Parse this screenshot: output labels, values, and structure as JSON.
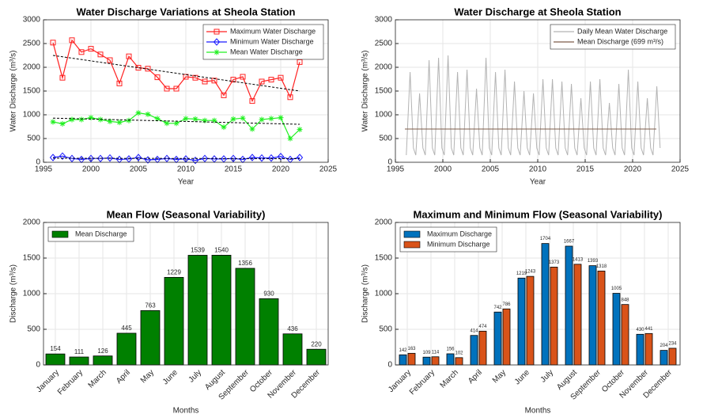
{
  "chart_data": [
    {
      "type": "line",
      "title": "Water Discharge Variations at Sheola Station",
      "xlabel": "Year",
      "ylabel": "Water Discharge (m³/s)",
      "x": [
        1996,
        1997,
        1998,
        1999,
        2000,
        2001,
        2002,
        2003,
        2004,
        2005,
        2006,
        2007,
        2008,
        2009,
        2010,
        2011,
        2012,
        2013,
        2014,
        2015,
        2016,
        2017,
        2018,
        2019,
        2020,
        2021,
        2022
      ],
      "series": [
        {
          "name": "Maximum Water Discharge",
          "color": "#ff2020",
          "marker": "square",
          "values": [
            2520,
            1780,
            2570,
            2320,
            2390,
            2270,
            2150,
            1660,
            2230,
            1990,
            1970,
            1790,
            1550,
            1550,
            1800,
            1780,
            1700,
            1720,
            1410,
            1740,
            1800,
            1290,
            1700,
            1740,
            1780,
            1370,
            2110
          ]
        },
        {
          "name": "Minimum Water Discharge",
          "color": "#1a1aff",
          "marker": "diamond",
          "values": [
            100,
            130,
            80,
            60,
            80,
            80,
            90,
            60,
            70,
            100,
            50,
            60,
            80,
            60,
            70,
            40,
            80,
            70,
            70,
            80,
            60,
            100,
            90,
            90,
            120,
            60,
            100
          ]
        },
        {
          "name": "Mean Water Discharge",
          "color": "#20f020",
          "marker": "star",
          "values": [
            850,
            810,
            900,
            900,
            940,
            900,
            860,
            840,
            880,
            1040,
            1010,
            920,
            820,
            820,
            920,
            910,
            880,
            880,
            740,
            910,
            930,
            700,
            900,
            920,
            940,
            500,
            690
          ]
        }
      ],
      "trend_lines": [
        {
          "x": [
            1996,
            2022
          ],
          "values": [
            2250,
            1500
          ]
        },
        {
          "x": [
            1996,
            2022
          ],
          "values": [
            930,
            800
          ]
        },
        {
          "x": [
            1996,
            2022
          ],
          "values": [
            85,
            75
          ]
        }
      ],
      "xlim": [
        1995,
        2025
      ],
      "xticks": [
        1995,
        2000,
        2005,
        2010,
        2015,
        2020,
        2025
      ],
      "ylim": [
        0,
        3000
      ],
      "yticks": [
        0,
        500,
        1000,
        1500,
        2000,
        2500,
        3000
      ],
      "grid": true,
      "legend": "upper-right"
    },
    {
      "type": "line",
      "title": "Water Discharge at Sheola Station",
      "xlabel": "Year",
      "ylabel": "Water Discharge (m³/s)",
      "series": [
        {
          "name": "Daily Mean Water Discharge",
          "color": "#b3b3b3",
          "x": [
            1996.15,
            1996.55,
            1996.9,
            1997.15,
            1997.55,
            1997.9,
            1998.15,
            1998.55,
            1998.9,
            1999.15,
            1999.55,
            1999.9,
            2000.15,
            2000.55,
            2000.9,
            2001.15,
            2001.55,
            2001.9,
            2002.15,
            2002.55,
            2002.9,
            2003.15,
            2003.55,
            2003.9,
            2004.15,
            2004.55,
            2004.9,
            2005.15,
            2005.55,
            2005.9,
            2006.15,
            2006.55,
            2006.9,
            2007.15,
            2007.55,
            2007.9,
            2008.15,
            2008.55,
            2008.9,
            2009.15,
            2009.55,
            2009.9,
            2010.15,
            2010.55,
            2010.9,
            2011.15,
            2011.55,
            2011.9,
            2012.15,
            2012.55,
            2012.9,
            2013.15,
            2013.55,
            2013.9,
            2014.15,
            2014.55,
            2014.9,
            2015.15,
            2015.55,
            2015.9,
            2016.15,
            2016.55,
            2016.9,
            2017.15,
            2017.55,
            2017.9,
            2018.15,
            2018.55,
            2018.9,
            2019.15,
            2019.55,
            2019.9,
            2020.15,
            2020.55,
            2020.9,
            2021.15,
            2021.55,
            2021.9,
            2022.15,
            2022.55,
            2022.9
          ],
          "values": [
            150,
            1900,
            300,
            150,
            1450,
            300,
            150,
            2150,
            300,
            150,
            2200,
            300,
            150,
            2250,
            300,
            150,
            1900,
            300,
            150,
            1950,
            300,
            150,
            1550,
            300,
            150,
            2200,
            300,
            150,
            1900,
            300,
            150,
            1950,
            300,
            150,
            1700,
            300,
            150,
            1500,
            300,
            150,
            1450,
            300,
            150,
            1750,
            300,
            150,
            1750,
            300,
            150,
            1700,
            300,
            150,
            1650,
            300,
            150,
            1350,
            300,
            150,
            1700,
            300,
            150,
            1750,
            300,
            150,
            1250,
            300,
            150,
            1650,
            300,
            150,
            1950,
            300,
            150,
            1700,
            300,
            150,
            1350,
            300,
            150,
            1600,
            300
          ]
        },
        {
          "name": "Mean Discharge (699 m³/s)",
          "color": "#7e5c4a",
          "x": [
            1996,
            2022.5
          ],
          "values": [
            699,
            699
          ]
        }
      ],
      "xlim": [
        1995,
        2025
      ],
      "xticks": [
        1995,
        2000,
        2005,
        2010,
        2015,
        2020,
        2025
      ],
      "ylim": [
        0,
        3000
      ],
      "yticks": [
        0,
        500,
        1000,
        1500,
        2000,
        2500,
        3000
      ],
      "grid": true,
      "legend": "upper-right"
    },
    {
      "type": "bar",
      "title": "Mean Flow (Seasonal Variability)",
      "xlabel": "Months",
      "ylabel": "Discharge (m³/s)",
      "categories": [
        "January",
        "February",
        "March",
        "April",
        "May",
        "June",
        "July",
        "August",
        "September",
        "October",
        "November",
        "December"
      ],
      "series": [
        {
          "name": "Mean Discharge",
          "color": "#008000",
          "values": [
            154,
            111,
            126,
            445,
            763,
            1229,
            1539,
            1540,
            1356,
            930,
            436,
            220
          ]
        }
      ],
      "ylim": [
        0,
        2000
      ],
      "yticks": [
        0,
        500,
        1000,
        1500,
        2000
      ],
      "grid": true,
      "legend": "upper-left"
    },
    {
      "type": "bar",
      "title": "Maximum and Minimum Flow (Seasonal Variability)",
      "xlabel": "Months",
      "ylabel": "Discharge (m³/s)",
      "categories": [
        "January",
        "February",
        "March",
        "April",
        "May",
        "June",
        "July",
        "August",
        "September",
        "October",
        "November",
        "December"
      ],
      "series": [
        {
          "name": "Maximum Discharge",
          "color": "#0072bd",
          "values": [
            142,
            109,
            156,
            414,
            742,
            1219,
            1704,
            1667,
            1393,
            1005,
            430,
            204
          ]
        },
        {
          "name": "Minimum Discharge",
          "color": "#d95319",
          "values": [
            163,
            114,
            102,
            474,
            786,
            1243,
            1373,
            1413,
            1318,
            848,
            441,
            234
          ]
        }
      ],
      "ylim": [
        0,
        2000
      ],
      "yticks": [
        0,
        500,
        1000,
        1500,
        2000
      ],
      "grid": true,
      "legend": "upper-left"
    }
  ]
}
